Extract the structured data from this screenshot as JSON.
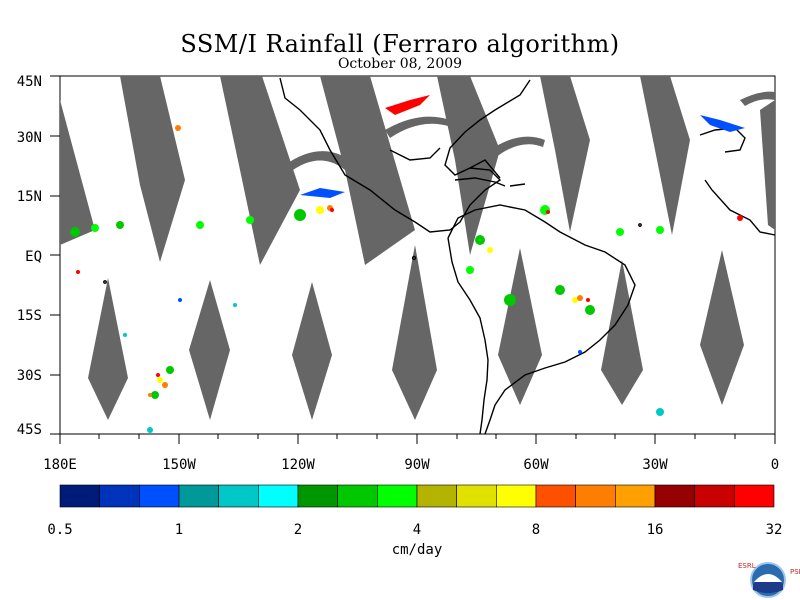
{
  "title": "SSM/I Rainfall (Ferraro algorithm)",
  "date": "October 08, 2009",
  "lat_labels": [
    "45N",
    "30N",
    "15N",
    "EQ",
    "15S",
    "30S",
    "45S"
  ],
  "lon_labels": [
    "180E",
    "150W",
    "120W",
    "90W",
    "60W",
    "30W",
    "0"
  ],
  "legend": {
    "units": "cm/day",
    "tick_labels": [
      "0.5",
      "1",
      "2",
      "4",
      "8",
      "16",
      "32"
    ],
    "colors": [
      "#001a7a",
      "#0033bb",
      "#0050ff",
      "#00999a",
      "#00c8c8",
      "#00ffff",
      "#009600",
      "#00c800",
      "#00ff00",
      "#b4b400",
      "#e1e100",
      "#ffff00",
      "#ff5000",
      "#ff7d00",
      "#ffa000",
      "#960000",
      "#c80000",
      "#ff0000"
    ]
  },
  "map": {
    "lat_range": [
      -45,
      45
    ],
    "lon_range": [
      -180,
      0
    ],
    "no_data_color": "#666666",
    "coastline_color": "#000000"
  },
  "logo": {
    "left_letters": "ESRL",
    "right_letters": "PSD",
    "text": "NOAA"
  }
}
